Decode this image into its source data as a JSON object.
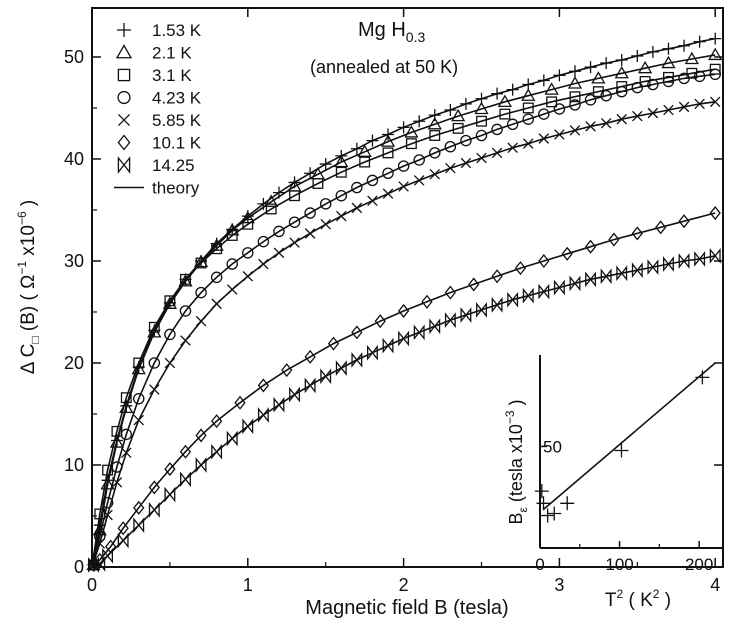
{
  "chart_data": [
    {
      "type": "scatter",
      "title": "Mg H",
      "title_subscript": "0.3",
      "subtitle": "(annealed at 50 K)",
      "xlabel": "Magnetic field B (tesla)",
      "ylabel_prefix": "Δ C",
      "ylabel_subscript": "□",
      "ylabel_mid": " (B)  ( Ω",
      "ylabel_sup1": "−1",
      "ylabel_mid2": " x10",
      "ylabel_sup2": "−6",
      "ylabel_end": " )",
      "xlim": [
        0,
        4.05
      ],
      "ylim": [
        0,
        54.8
      ],
      "xticks": [
        0,
        1,
        2,
        3,
        4
      ],
      "yticks": [
        0,
        10,
        20,
        30,
        40,
        50
      ],
      "grid": false,
      "legend_position": "top-left",
      "theory_label": "theory",
      "series": [
        {
          "name": "1.53 K",
          "marker": "plus",
          "x": [
            0.05,
            0.1,
            0.16,
            0.22,
            0.3,
            0.4,
            0.5,
            0.6,
            0.7,
            0.8,
            0.9,
            1.0,
            1.1,
            1.2,
            1.3,
            1.4,
            1.5,
            1.6,
            1.7,
            1.8,
            1.9,
            2.0,
            2.1,
            2.2,
            2.3,
            2.4,
            2.5,
            2.6,
            2.7,
            2.8,
            2.9,
            3.0,
            3.1,
            3.2,
            3.3,
            3.4,
            3.5,
            3.6,
            3.7,
            3.8,
            3.9,
            4.0
          ],
          "y": [
            4.1,
            8.5,
            12.4,
            15.8,
            19.6,
            23.2,
            25.9,
            28.2,
            30.0,
            31.7,
            33.1,
            34.4,
            35.6,
            36.7,
            37.7,
            38.6,
            39.5,
            40.3,
            41.0,
            41.8,
            42.4,
            43.1,
            43.7,
            44.3,
            44.8,
            45.4,
            45.9,
            46.4,
            46.8,
            47.3,
            47.7,
            48.2,
            48.6,
            49.0,
            49.4,
            49.7,
            50.1,
            50.5,
            50.8,
            51.1,
            51.5,
            51.8
          ]
        },
        {
          "name": "2.1 K",
          "marker": "triangle",
          "x": [
            0.05,
            0.1,
            0.16,
            0.22,
            0.3,
            0.4,
            0.5,
            0.6,
            0.7,
            0.8,
            0.9,
            1.0,
            1.15,
            1.3,
            1.45,
            1.6,
            1.75,
            1.9,
            2.05,
            2.2,
            2.35,
            2.5,
            2.65,
            2.8,
            2.95,
            3.1,
            3.25,
            3.4,
            3.55,
            3.7,
            3.85,
            4.0
          ],
          "y": [
            3.6,
            8.1,
            12.2,
            15.6,
            19.4,
            23.0,
            25.8,
            28.0,
            29.9,
            31.5,
            33.0,
            34.2,
            35.8,
            37.3,
            38.5,
            39.7,
            40.7,
            41.7,
            42.6,
            43.4,
            44.2,
            44.9,
            45.6,
            46.2,
            46.8,
            47.4,
            47.9,
            48.4,
            48.9,
            49.4,
            49.8,
            50.2
          ]
        },
        {
          "name": "3.1 K",
          "marker": "square",
          "x": [
            0.05,
            0.1,
            0.16,
            0.22,
            0.3,
            0.4,
            0.5,
            0.6,
            0.7,
            0.8,
            0.9,
            1.0,
            1.15,
            1.3,
            1.45,
            1.6,
            1.75,
            1.9,
            2.05,
            2.2,
            2.35,
            2.5,
            2.65,
            2.8,
            2.95,
            3.1,
            3.25,
            3.4,
            3.55,
            3.7,
            3.85,
            4.0
          ],
          "y": [
            5.2,
            9.5,
            13.3,
            16.6,
            20.0,
            23.5,
            26.1,
            28.2,
            29.8,
            31.2,
            32.5,
            33.6,
            35.1,
            36.4,
            37.6,
            38.7,
            39.7,
            40.6,
            41.5,
            42.3,
            43.0,
            43.7,
            44.4,
            45.0,
            45.6,
            46.1,
            46.6,
            47.1,
            47.6,
            48.0,
            48.4,
            48.8
          ]
        },
        {
          "name": "4.23 K",
          "marker": "circle",
          "x": [
            0.05,
            0.1,
            0.16,
            0.22,
            0.3,
            0.4,
            0.5,
            0.6,
            0.7,
            0.8,
            0.9,
            1.0,
            1.1,
            1.2,
            1.3,
            1.4,
            1.5,
            1.6,
            1.7,
            1.8,
            1.9,
            2.0,
            2.1,
            2.2,
            2.3,
            2.4,
            2.5,
            2.6,
            2.7,
            2.8,
            2.9,
            3.0,
            3.1,
            3.2,
            3.3,
            3.4,
            3.5,
            3.6,
            3.7,
            3.8,
            3.9,
            4.0
          ],
          "y": [
            3.0,
            6.3,
            9.8,
            13.0,
            16.5,
            20.0,
            22.8,
            25.1,
            26.9,
            28.4,
            29.7,
            30.8,
            31.9,
            32.9,
            33.8,
            34.7,
            35.6,
            36.4,
            37.2,
            37.9,
            38.6,
            39.3,
            39.9,
            40.6,
            41.2,
            41.8,
            42.3,
            42.9,
            43.4,
            43.9,
            44.4,
            44.9,
            45.3,
            45.8,
            46.2,
            46.6,
            47.0,
            47.3,
            47.6,
            47.9,
            48.1,
            48.3
          ]
        },
        {
          "name": "5.85 K",
          "marker": "x",
          "x": [
            0.05,
            0.1,
            0.16,
            0.22,
            0.3,
            0.4,
            0.5,
            0.6,
            0.7,
            0.8,
            0.9,
            1.0,
            1.1,
            1.2,
            1.3,
            1.4,
            1.5,
            1.6,
            1.7,
            1.8,
            1.9,
            2.0,
            2.1,
            2.2,
            2.3,
            2.4,
            2.5,
            2.6,
            2.7,
            2.8,
            2.9,
            3.0,
            3.1,
            3.2,
            3.3,
            3.4,
            3.5,
            3.6,
            3.7,
            3.8,
            3.9,
            4.0
          ],
          "y": [
            2.3,
            5.1,
            8.3,
            11.2,
            14.4,
            17.4,
            20.0,
            22.2,
            24.1,
            25.8,
            27.2,
            28.5,
            29.7,
            30.8,
            31.8,
            32.7,
            33.6,
            34.4,
            35.2,
            35.9,
            36.6,
            37.3,
            37.9,
            38.5,
            39.1,
            39.6,
            40.1,
            40.6,
            41.1,
            41.5,
            42.0,
            42.4,
            42.8,
            43.2,
            43.5,
            43.9,
            44.2,
            44.5,
            44.8,
            45.1,
            45.4,
            45.6
          ]
        },
        {
          "name": "10.1 K",
          "marker": "diamond",
          "x": [
            0.05,
            0.12,
            0.2,
            0.3,
            0.4,
            0.5,
            0.6,
            0.7,
            0.8,
            0.95,
            1.1,
            1.25,
            1.4,
            1.55,
            1.7,
            1.85,
            2.0,
            2.15,
            2.3,
            2.45,
            2.6,
            2.75,
            2.9,
            3.05,
            3.2,
            3.35,
            3.5,
            3.65,
            3.8,
            4.0
          ],
          "y": [
            0.7,
            2.0,
            3.8,
            5.8,
            7.8,
            9.6,
            11.3,
            12.9,
            14.3,
            16.1,
            17.8,
            19.3,
            20.6,
            21.9,
            23.0,
            24.1,
            25.1,
            26.0,
            26.9,
            27.7,
            28.5,
            29.3,
            30.0,
            30.7,
            31.4,
            32.1,
            32.7,
            33.3,
            33.9,
            34.7
          ]
        },
        {
          "name": "14.25",
          "marker": "bowtie",
          "x": [
            0.05,
            0.1,
            0.2,
            0.3,
            0.4,
            0.5,
            0.6,
            0.7,
            0.8,
            0.9,
            1.0,
            1.1,
            1.2,
            1.3,
            1.4,
            1.5,
            1.6,
            1.7,
            1.8,
            1.9,
            2.0,
            2.1,
            2.2,
            2.3,
            2.4,
            2.5,
            2.6,
            2.7,
            2.8,
            2.9,
            3.0,
            3.1,
            3.2,
            3.3,
            3.4,
            3.5,
            3.6,
            3.7,
            3.8,
            3.9,
            4.0
          ],
          "y": [
            0.3,
            1.1,
            2.6,
            4.1,
            5.6,
            7.1,
            8.6,
            10.0,
            11.3,
            12.6,
            13.8,
            14.9,
            15.9,
            16.9,
            17.8,
            18.7,
            19.5,
            20.3,
            21.0,
            21.7,
            22.4,
            23.0,
            23.6,
            24.2,
            24.7,
            25.2,
            25.7,
            26.2,
            26.6,
            27.0,
            27.4,
            27.8,
            28.2,
            28.5,
            28.8,
            29.1,
            29.4,
            29.7,
            30.0,
            30.2,
            30.5
          ]
        }
      ]
    },
    {
      "type": "line",
      "title": "",
      "xlabel_base": "T",
      "xlabel_sup": "2",
      "xlabel_rest": " ( K",
      "xlabel_sup2": "2",
      "xlabel_end": " )",
      "ylabel_base": "B",
      "ylabel_sub": "ε",
      "ylabel_rest": " (tesla x10",
      "ylabel_sup": "−3",
      "ylabel_end": " )",
      "xlim": [
        0,
        230
      ],
      "ylim": [
        0,
        95
      ],
      "xticks": [
        0,
        100,
        200
      ],
      "yticks": [
        50
      ],
      "points_x": [
        2.3,
        4.4,
        9.6,
        17.9,
        34.2,
        102.4,
        204.1
      ],
      "points_y": [
        28,
        22,
        16,
        17,
        22,
        48,
        84
      ],
      "fit_x": [
        4.4,
        220
      ],
      "fit_y": [
        19,
        91
      ]
    }
  ]
}
